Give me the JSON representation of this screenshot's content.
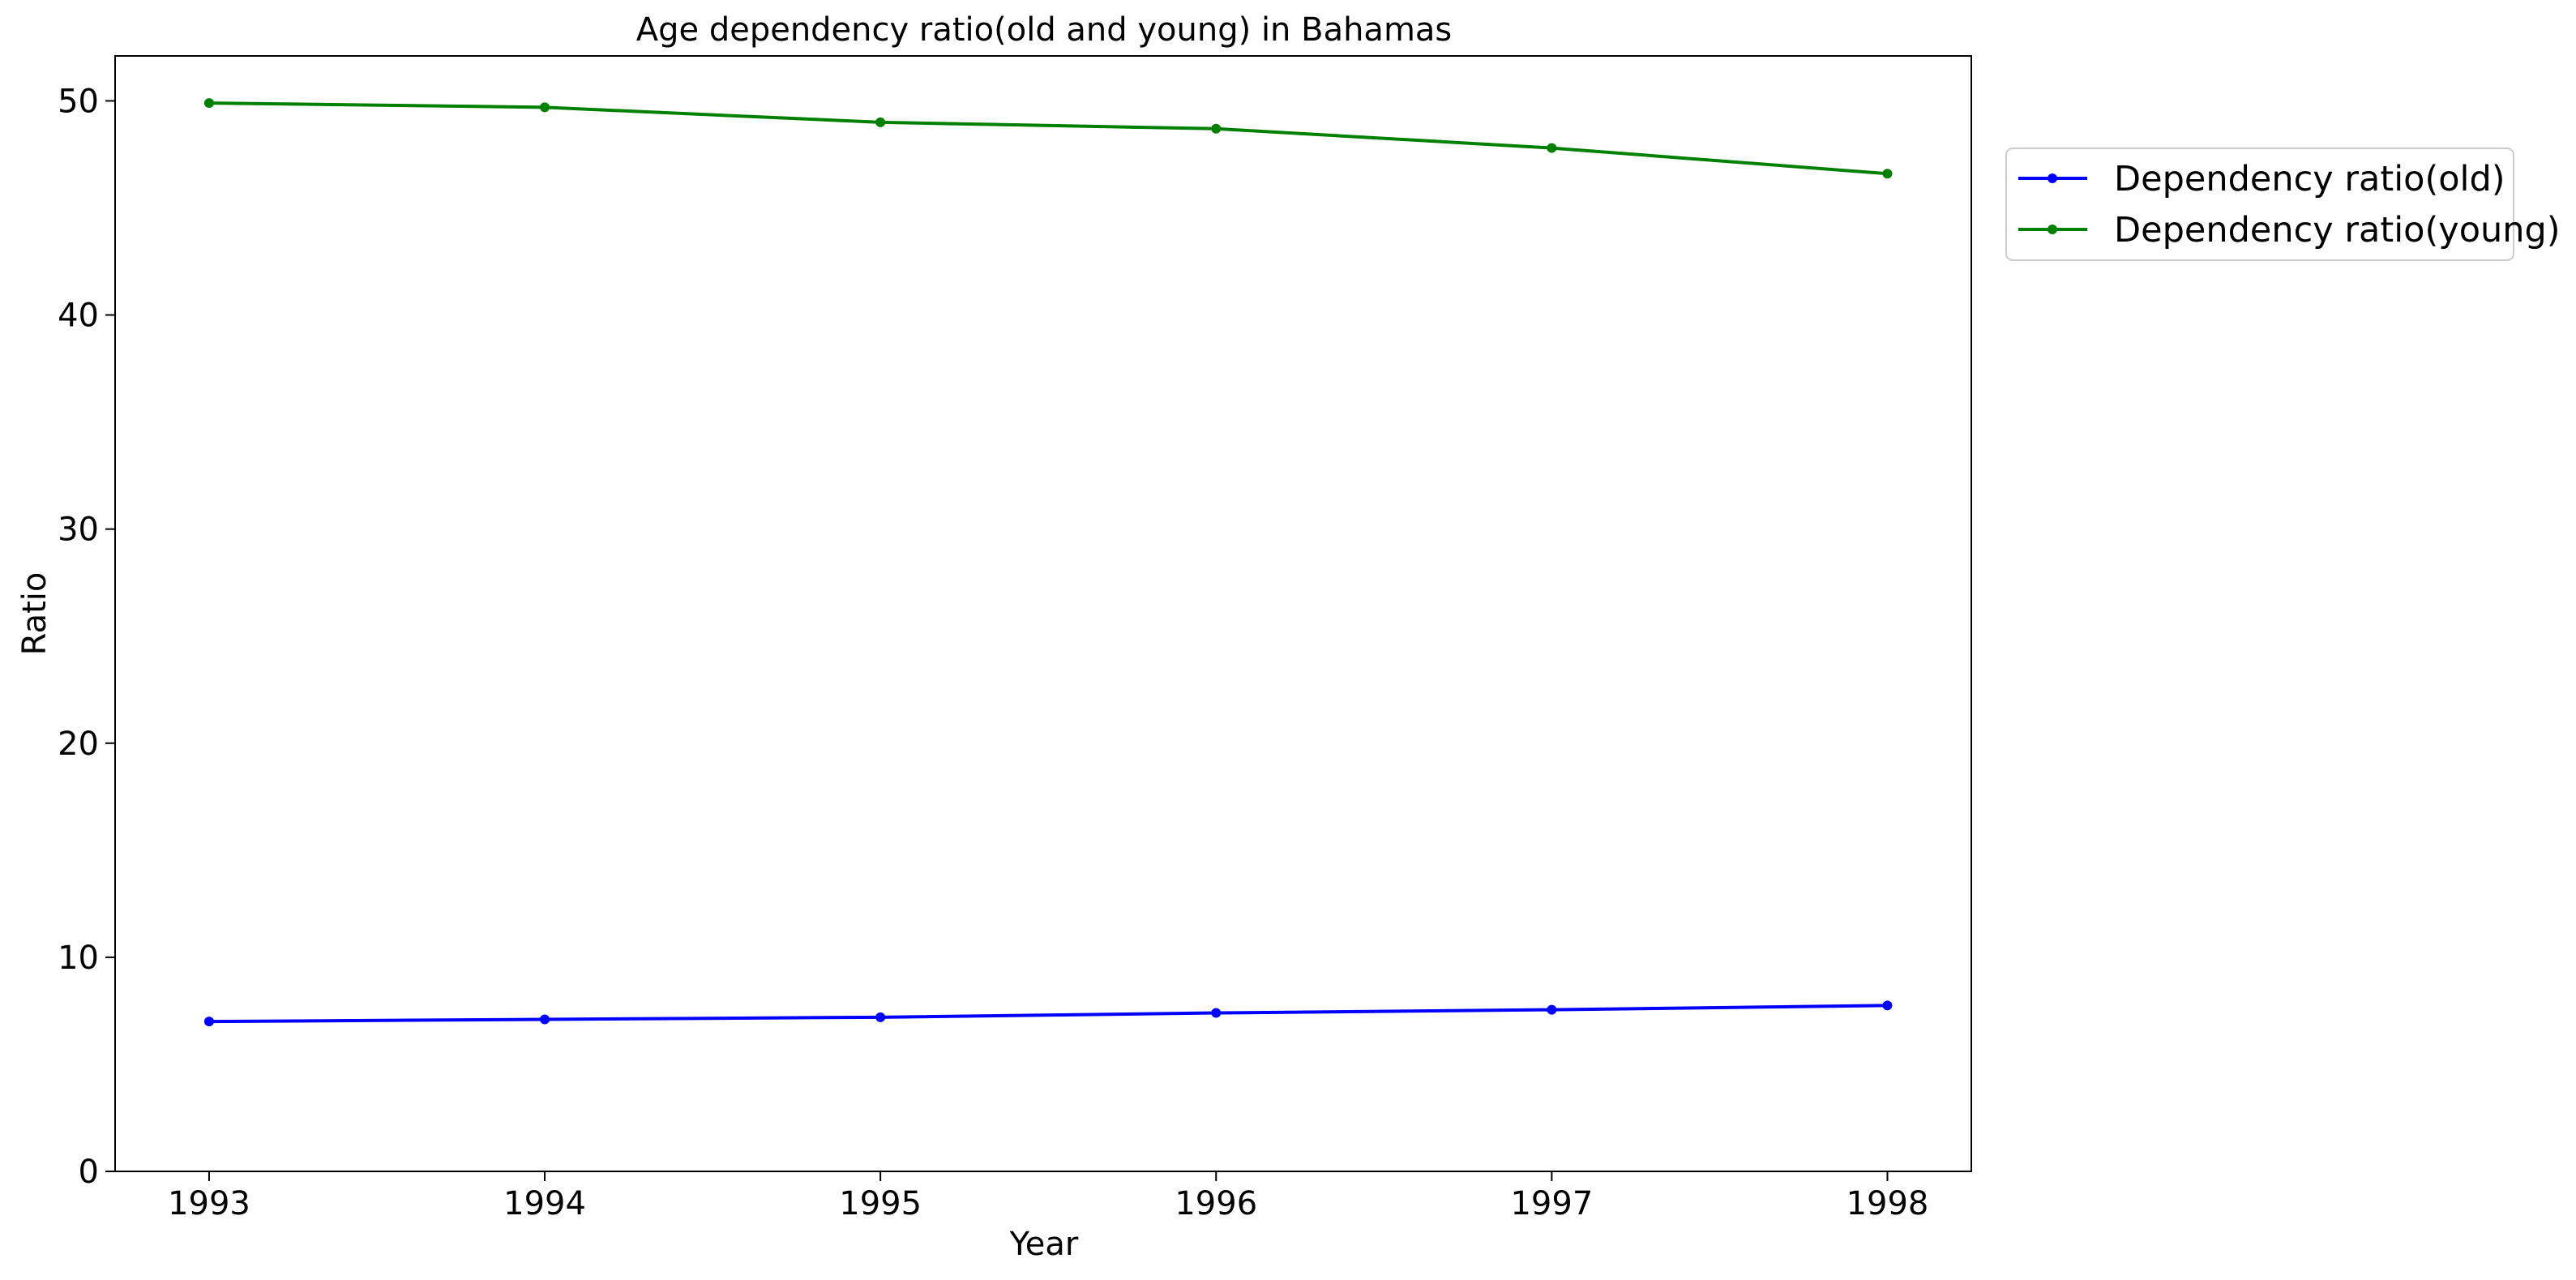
{
  "chart_data": {
    "type": "line",
    "title": "Age dependency ratio(old and young) in Bahamas",
    "xlabel": "Year",
    "ylabel": "Ratio",
    "x": [
      1993,
      1994,
      1995,
      1996,
      1997,
      1998
    ],
    "x_tick_labels": [
      "1993",
      "1994",
      "1995",
      "1996",
      "1997",
      "1998"
    ],
    "y_ticks": [
      0,
      10,
      20,
      30,
      40,
      50
    ],
    "y_tick_labels": [
      "0",
      "10",
      "20",
      "30",
      "40",
      "50"
    ],
    "xlim": [
      1992.72,
      1998.25
    ],
    "ylim": [
      0,
      52.1
    ],
    "grid": false,
    "legend_position": "outside-top-right",
    "series": [
      {
        "name": "Dependency ratio(old)",
        "color": "#0000ff",
        "marker": "circle",
        "values": [
          7.0,
          7.1,
          7.2,
          7.4,
          7.55,
          7.75
        ]
      },
      {
        "name": "Dependency ratio(young)",
        "color": "#008000",
        "marker": "circle",
        "values": [
          49.9,
          49.7,
          49.0,
          48.7,
          47.8,
          46.6
        ]
      }
    ]
  }
}
